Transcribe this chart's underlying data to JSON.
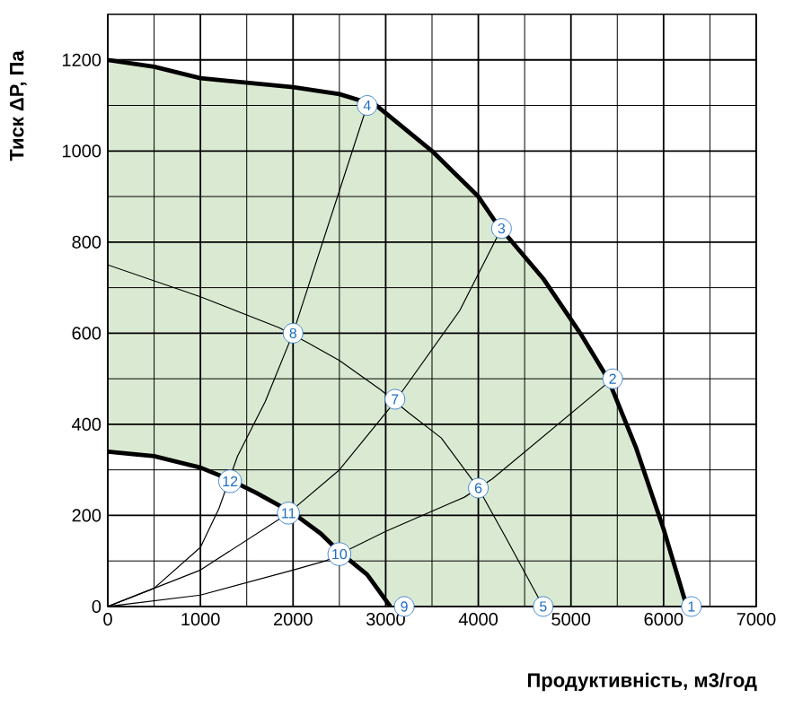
{
  "chart_data": {
    "type": "line",
    "xlabel": "Продуктивність, м3/год",
    "ylabel": "Тиск ΔР, Па",
    "xlim": [
      0,
      7000
    ],
    "ylim": [
      0,
      1300
    ],
    "xticks": [
      0,
      1000,
      2000,
      3000,
      4000,
      5000,
      6000,
      7000
    ],
    "yticks": [
      0,
      200,
      400,
      600,
      800,
      1000,
      1200
    ],
    "grid": true,
    "series": [
      {
        "type": "area",
        "color": "#daead2",
        "x": [
          0,
          500,
          1000,
          2000,
          2500,
          2900,
          3500,
          4000,
          4200,
          4700,
          5100,
          5400,
          5700,
          6000,
          6250
        ],
        "values": [
          1200,
          1185,
          1160,
          1140,
          1125,
          1100,
          1000,
          900,
          840,
          720,
          600,
          500,
          350,
          170,
          0
        ]
      },
      {
        "type": "area",
        "color": "#ffffff",
        "x": [
          0,
          500,
          1000,
          1300,
          1600,
          2000,
          2300,
          2500,
          2800,
          3050
        ],
        "values": [
          340,
          330,
          305,
          280,
          250,
          205,
          160,
          120,
          70,
          0
        ]
      },
      {
        "color": "#000000",
        "x": [
          0,
          500,
          1000,
          1200,
          1400,
          1700,
          2000,
          2800
        ],
        "values": [
          0,
          40,
          130,
          215,
          330,
          450,
          600,
          1100
        ]
      },
      {
        "color": "#000000",
        "x": [
          0,
          1000,
          1950,
          2500,
          3100,
          3800,
          4250
        ],
        "values": [
          0,
          80,
          205,
          300,
          450,
          650,
          830
        ]
      },
      {
        "color": "#000000",
        "x": [
          0,
          1000,
          2000,
          2350,
          2650,
          3000,
          3850,
          4150,
          5450
        ],
        "values": [
          0,
          25,
          80,
          100,
          130,
          165,
          240,
          280,
          500
        ]
      },
      {
        "color": "#000000",
        "x": [
          0,
          1000,
          1850,
          2150,
          2500,
          2950,
          3250,
          3600,
          4000,
          4300,
          4700
        ],
        "values": [
          750,
          680,
          612,
          580,
          540,
          475,
          425,
          370,
          260,
          150,
          0
        ]
      }
    ],
    "annotations": [
      {
        "text": "1",
        "x": 6300,
        "y": 0
      },
      {
        "text": "2",
        "x": 5450,
        "y": 500
      },
      {
        "text": "3",
        "x": 4250,
        "y": 830
      },
      {
        "text": "4",
        "x": 2800,
        "y": 1100
      },
      {
        "text": "5",
        "x": 4700,
        "y": 0
      },
      {
        "text": "6",
        "x": 4000,
        "y": 260
      },
      {
        "text": "7",
        "x": 3100,
        "y": 455
      },
      {
        "text": "8",
        "x": 2000,
        "y": 600
      },
      {
        "text": "9",
        "x": 3200,
        "y": 0
      },
      {
        "text": "10",
        "x": 2500,
        "y": 115
      },
      {
        "text": "11",
        "x": 1950,
        "y": 205
      },
      {
        "text": "12",
        "x": 1320,
        "y": 275
      }
    ]
  }
}
